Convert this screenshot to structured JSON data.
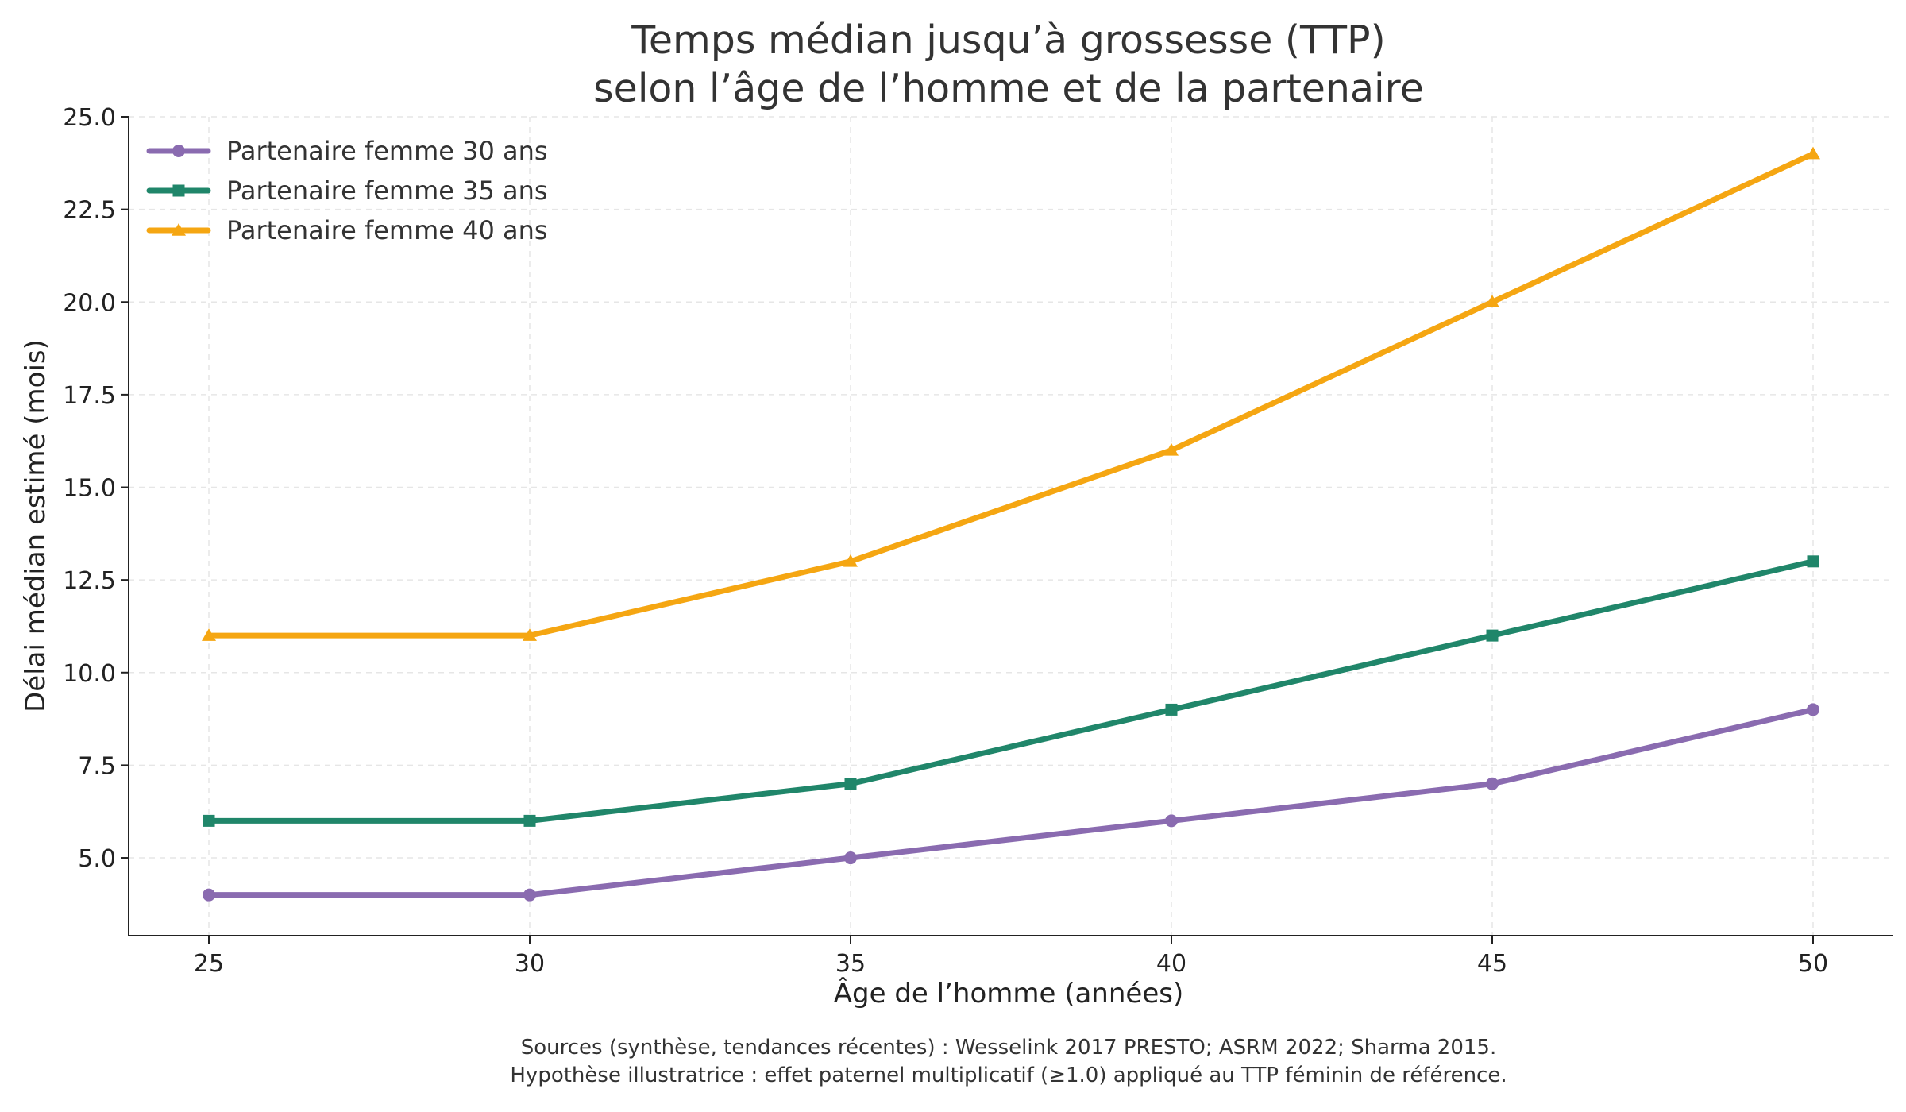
{
  "chart_data": {
    "type": "line",
    "title": [
      "Temps médian jusqu’à grossesse (TTP)",
      "selon l’âge de l’homme et de la partenaire"
    ],
    "xlabel": "Âge de l’homme (années)",
    "ylabel": "Délai médian estimé (mois)",
    "x": [
      25,
      30,
      35,
      40,
      45,
      50
    ],
    "xlim": [
      23.75,
      51.25
    ],
    "ylim": [
      2.9,
      25.0
    ],
    "xticks": [
      "25",
      "30",
      "35",
      "40",
      "45",
      "50"
    ],
    "yticks": [
      "5.0",
      "7.5",
      "10.0",
      "12.5",
      "15.0",
      "17.5",
      "20.0",
      "22.5",
      "25.0"
    ],
    "grid": true,
    "legend_position": "top-left",
    "series": [
      {
        "name": "Partenaire femme 30 ans",
        "color": "#8a6bb0",
        "marker": "circle",
        "values": [
          4,
          4,
          5,
          6,
          7,
          9
        ]
      },
      {
        "name": "Partenaire femme 35 ans",
        "color": "#20866a",
        "marker": "square",
        "values": [
          6,
          6,
          7,
          9,
          11,
          13
        ]
      },
      {
        "name": "Partenaire femme 40 ans",
        "color": "#f5a612",
        "marker": "triangle",
        "values": [
          11,
          11,
          13,
          16,
          20,
          24
        ]
      }
    ],
    "footnote": [
      "Sources (synthèse, tendances récentes) : Wesselink 2017 PRESTO; ASRM 2022; Sharma 2015.",
      "Hypothèse illustratrice : effet paternel multiplicatif (≥1.0) appliqué au TTP féminin de référence."
    ]
  }
}
